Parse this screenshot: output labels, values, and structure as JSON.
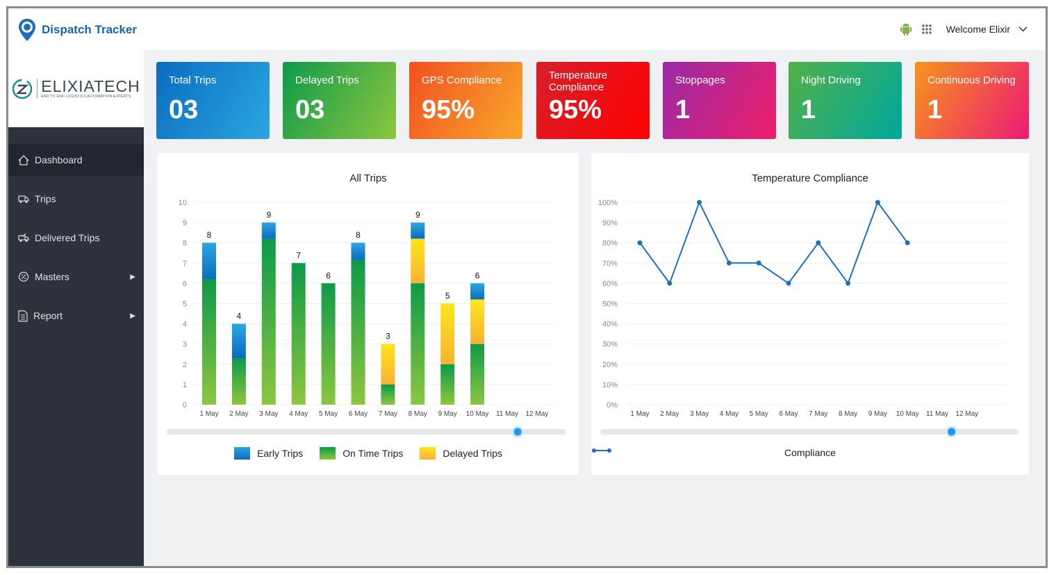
{
  "header": {
    "app_title": "Dispatch Tracker",
    "welcome": "Welcome Elixir"
  },
  "logo": {
    "name": "ELIXIATECH",
    "tagline": "END TO END LOGISTICS AUTOMATION EXPERTS"
  },
  "sidebar": {
    "items": [
      {
        "label": "Dashboard",
        "icon": "home-icon",
        "active": true
      },
      {
        "label": "Trips",
        "icon": "truck-icon"
      },
      {
        "label": "Delivered Trips",
        "icon": "delivered-truck-icon"
      },
      {
        "label": "Masters",
        "icon": "masters-icon",
        "submenu": true
      },
      {
        "label": "Report",
        "icon": "report-icon",
        "submenu": true
      }
    ]
  },
  "cards": [
    {
      "title": "Total Trips",
      "value": "03",
      "colors": [
        "#0b6cbf",
        "#2ba6e1"
      ]
    },
    {
      "title": "Delayed Trips",
      "value": "03",
      "colors": [
        "#0e9a4a",
        "#8cc63f"
      ]
    },
    {
      "title": "GPS Compliance",
      "value": "95%",
      "colors": [
        "#f25022",
        "#f9a72b"
      ]
    },
    {
      "title": "Temperature Compliance",
      "value": "95%",
      "colors": [
        "#d6202a",
        "#ff0000"
      ]
    },
    {
      "title": "Stoppages",
      "value": "1",
      "colors": [
        "#9a2aa6",
        "#ee1f6b"
      ]
    },
    {
      "title": "Night Driving",
      "value": "1",
      "colors": [
        "#52b048",
        "#00a79d"
      ]
    },
    {
      "title": "Continuous Driving",
      "value": "1",
      "colors": [
        "#f7941d",
        "#ec1a74"
      ]
    }
  ],
  "chart_data": [
    {
      "type": "bar",
      "stacked": true,
      "title": "All Trips",
      "categories": [
        "1 May",
        "2 May",
        "3 May",
        "4 May",
        "5 May",
        "6 May",
        "7 May",
        "8 May",
        "9 May",
        "10 May",
        "11 May",
        "12 May"
      ],
      "series": [
        {
          "name": "On Time Trips",
          "values": [
            6.2,
            2.3,
            8.2,
            7,
            6,
            7.15,
            1,
            6,
            2,
            3,
            0,
            0
          ],
          "color": "#0e9a48"
        },
        {
          "name": "Delayed Trips",
          "values": [
            0,
            0,
            0,
            0,
            0,
            0,
            2,
            2.2,
            3,
            2.2,
            0,
            0
          ],
          "color": "#fde51c"
        },
        {
          "name": "Early Trips",
          "values": [
            1.8,
            1.7,
            0.8,
            0,
            0,
            0.85,
            0,
            0.8,
            0,
            0.8,
            0,
            0
          ],
          "color": "#1e8fd6"
        }
      ],
      "totals": [
        8,
        4,
        9,
        7,
        6,
        8,
        3,
        9,
        5,
        6,
        null,
        null
      ],
      "yticks": [
        0,
        1,
        2,
        3,
        4,
        5,
        6,
        7,
        8,
        9,
        10
      ],
      "ylim": [
        0,
        10
      ],
      "grid": true,
      "legend": "bottom",
      "slider_value": 0.88
    },
    {
      "type": "line",
      "title": "Temperature Compliance",
      "categories": [
        "1 May",
        "2 May",
        "3 May",
        "4 May",
        "5 May",
        "6 May",
        "7 May",
        "8 May",
        "9 May",
        "10 May",
        "11 May",
        "12 May"
      ],
      "series": [
        {
          "name": "Compliance",
          "values": [
            80,
            60,
            100,
            70,
            70,
            60,
            80,
            60,
            100,
            80,
            null,
            null
          ],
          "color": "#1e6fc0"
        }
      ],
      "yticks": [
        "0%",
        "10%",
        "20%",
        "30%",
        "40%",
        "50%",
        "60%",
        "70%",
        "80%",
        "90%",
        "100%"
      ],
      "ylim": [
        0,
        100
      ],
      "grid": true,
      "legend": "bottom",
      "slider_value": 0.84
    }
  ]
}
